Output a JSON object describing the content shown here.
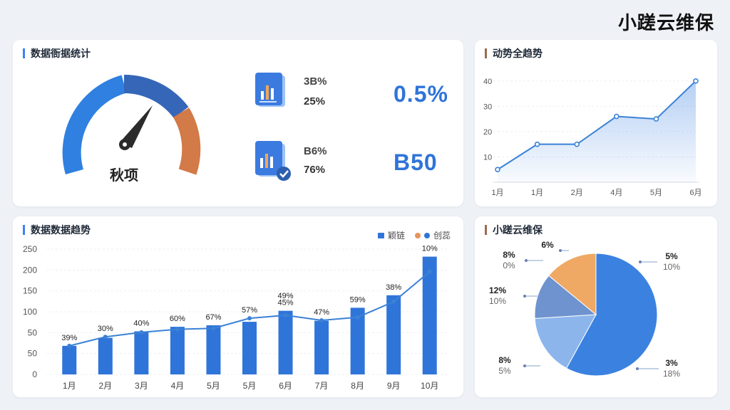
{
  "brand": "小蹉云维保",
  "stats_card": {
    "title": "数据衙据统计",
    "gauge_label": "秋项",
    "rows": [
      {
        "pct_top": "3B%",
        "pct_bottom": "25%",
        "big_value": "0.5%"
      },
      {
        "pct_top": "B6%",
        "pct_bottom": "76%",
        "big_value": "B50"
      }
    ]
  },
  "trend_card": {
    "title": "动势全趋势",
    "chart_data": {
      "type": "area",
      "categories": [
        "1月",
        "1月",
        "2月",
        "4月",
        "5月",
        "6月"
      ],
      "values": [
        5,
        15,
        15,
        26,
        25,
        40
      ],
      "ylim": [
        0,
        45
      ],
      "yticks": [
        "40",
        "30",
        "20",
        "10"
      ],
      "grid": true
    }
  },
  "bars_card": {
    "title": "数据数据趋势",
    "legend": [
      {
        "label": "颖链",
        "color": "#2f74d9"
      },
      {
        "label": "创蕊",
        "color": "#e8945a"
      }
    ],
    "chart_data": {
      "type": "bar",
      "categories": [
        "1月",
        "2月",
        "3月",
        "4月",
        "5月",
        "5月",
        "6月",
        "7月",
        "8月",
        "9月",
        "10月"
      ],
      "bar_values": [
        57,
        73,
        86,
        95,
        98,
        105,
        127,
        107,
        133,
        158,
        235
      ],
      "line_values": [
        57,
        75,
        84,
        90,
        92,
        112,
        118,
        108,
        114,
        145,
        205
      ],
      "labels": [
        "39%",
        "30%",
        "40%",
        "60%",
        "67%",
        "57%",
        "45%",
        "47%",
        "59%",
        "38%",
        "10%"
      ],
      "extra_label": {
        "index": 6,
        "text": "49%"
      },
      "yticks": [
        "250",
        "200",
        "150",
        "100",
        "50",
        "50",
        "0"
      ],
      "ylim": [
        0,
        250
      ],
      "grid": true
    }
  },
  "pie_card": {
    "title": "小蹉云维保",
    "chart_data": {
      "type": "pie",
      "slices": [
        {
          "value": 58,
          "color": "#3b82e0"
        },
        {
          "value": 16,
          "color": "#8cb5ec"
        },
        {
          "value": 12,
          "color": "#6f93cf"
        },
        {
          "value": 14,
          "color": "#efa964"
        }
      ],
      "callouts": [
        {
          "a": "8%",
          "b": "0%",
          "side": "left"
        },
        {
          "a": "6%",
          "b": "",
          "side": "top"
        },
        {
          "a": "12%",
          "b": "10%",
          "side": "left"
        },
        {
          "a": "8%",
          "b": "5%",
          "side": "left"
        },
        {
          "a": "5%",
          "b": "10%",
          "side": "right"
        },
        {
          "a": "3%",
          "b": "18%",
          "side": "right"
        }
      ]
    }
  }
}
